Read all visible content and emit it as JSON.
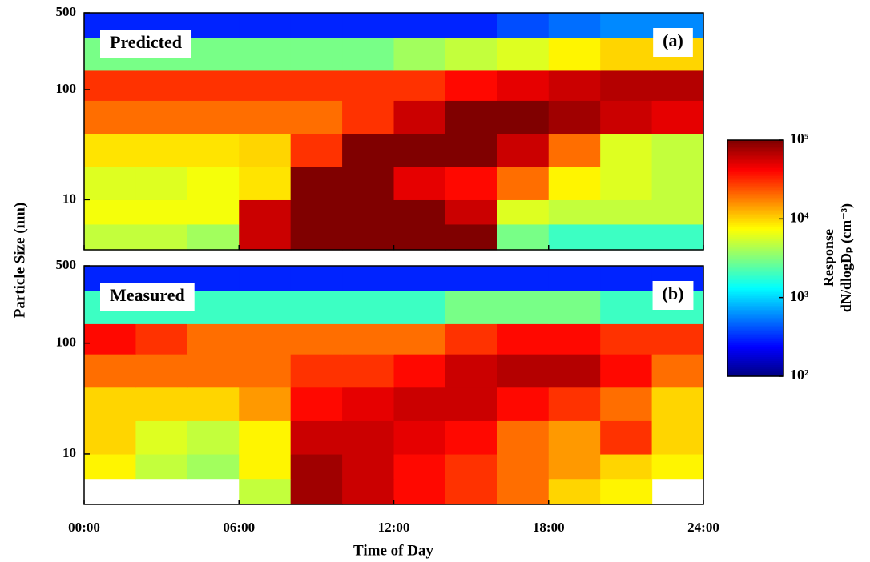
{
  "chart_data": [
    {
      "type": "heatmap",
      "annotation": "Predicted",
      "panel_label": "(a)",
      "x_edges": [
        0,
        2,
        4,
        6,
        8,
        10,
        12,
        14,
        16,
        18,
        20,
        22,
        24
      ],
      "y_edges": [
        3.5,
        6,
        10,
        20,
        40,
        80,
        150,
        300,
        500
      ],
      "ylim": [
        3.5,
        500
      ],
      "yticks": [
        10,
        100,
        500
      ],
      "log_y": true,
      "values": [
        [
          5000,
          5000,
          4000,
          60000,
          100000,
          100000,
          100000,
          100000,
          3000,
          2000,
          2000,
          2000
        ],
        [
          7000,
          7000,
          7000,
          60000,
          100000,
          100000,
          100000,
          60000,
          6000,
          5000,
          5000,
          5000
        ],
        [
          6000,
          6000,
          7000,
          9000,
          100000,
          100000,
          50000,
          40000,
          20000,
          8000,
          6000,
          5000
        ],
        [
          9000,
          9000,
          9000,
          10000,
          30000,
          100000,
          100000,
          100000,
          60000,
          20000,
          6000,
          5000
        ],
        [
          20000,
          20000,
          20000,
          20000,
          20000,
          30000,
          60000,
          100000,
          100000,
          80000,
          60000,
          50000
        ],
        [
          30000,
          30000,
          30000,
          30000,
          30000,
          30000,
          30000,
          40000,
          50000,
          60000,
          70000,
          70000
        ],
        [
          3000,
          3000,
          3000,
          3000,
          3000,
          3000,
          4000,
          5000,
          6000,
          8000,
          10000,
          10000
        ],
        [
          300,
          300,
          300,
          300,
          300,
          300,
          300,
          300,
          400,
          500,
          600,
          600
        ]
      ]
    },
    {
      "type": "heatmap",
      "annotation": "Measured",
      "panel_label": "(b)",
      "x_edges": [
        0,
        2,
        4,
        6,
        8,
        10,
        12,
        14,
        16,
        18,
        20,
        22,
        24
      ],
      "y_edges": [
        3.5,
        6,
        10,
        20,
        40,
        80,
        150,
        300,
        500
      ],
      "ylim": [
        3.5,
        500
      ],
      "yticks": [
        10,
        100,
        500
      ],
      "log_y": true,
      "values": [
        [
          null,
          null,
          null,
          5000,
          80000,
          60000,
          40000,
          30000,
          20000,
          10000,
          8000,
          null
        ],
        [
          8000,
          5000,
          4000,
          8000,
          80000,
          60000,
          40000,
          30000,
          20000,
          15000,
          10000,
          8000
        ],
        [
          10000,
          6000,
          5000,
          8000,
          60000,
          60000,
          50000,
          40000,
          20000,
          15000,
          30000,
          10000
        ],
        [
          10000,
          10000,
          10000,
          15000,
          40000,
          50000,
          60000,
          60000,
          40000,
          30000,
          20000,
          10000
        ],
        [
          20000,
          20000,
          20000,
          20000,
          30000,
          30000,
          40000,
          60000,
          70000,
          70000,
          40000,
          20000
        ],
        [
          40000,
          30000,
          20000,
          20000,
          20000,
          20000,
          20000,
          30000,
          40000,
          40000,
          30000,
          30000
        ],
        [
          2000,
          2000,
          2000,
          2000,
          2000,
          2000,
          2000,
          3000,
          3000,
          3000,
          2000,
          2000
        ],
        [
          300,
          300,
          300,
          300,
          300,
          300,
          300,
          300,
          300,
          300,
          300,
          300
        ]
      ]
    }
  ],
  "x_axis": {
    "label": "Time of Day",
    "lim": [
      0,
      24
    ],
    "ticks": [
      {
        "value": 0,
        "label": "00:00"
      },
      {
        "value": 6,
        "label": "06:00"
      },
      {
        "value": 12,
        "label": "12:00"
      },
      {
        "value": 18,
        "label": "18:00"
      },
      {
        "value": 24,
        "label": "24:00"
      }
    ]
  },
  "y_label": "Particle Size (nm)",
  "colorbar": {
    "label": [
      "Response",
      "dN/dlogDₚ (cm⁻³)"
    ],
    "lim": [
      100,
      100000
    ],
    "log": true,
    "colormap": "jet",
    "ticks": [
      {
        "value": 100,
        "label": "10²"
      },
      {
        "value": 1000,
        "label": "10³"
      },
      {
        "value": 10000,
        "label": "10⁴"
      },
      {
        "value": 100000,
        "label": "10⁵"
      }
    ]
  }
}
